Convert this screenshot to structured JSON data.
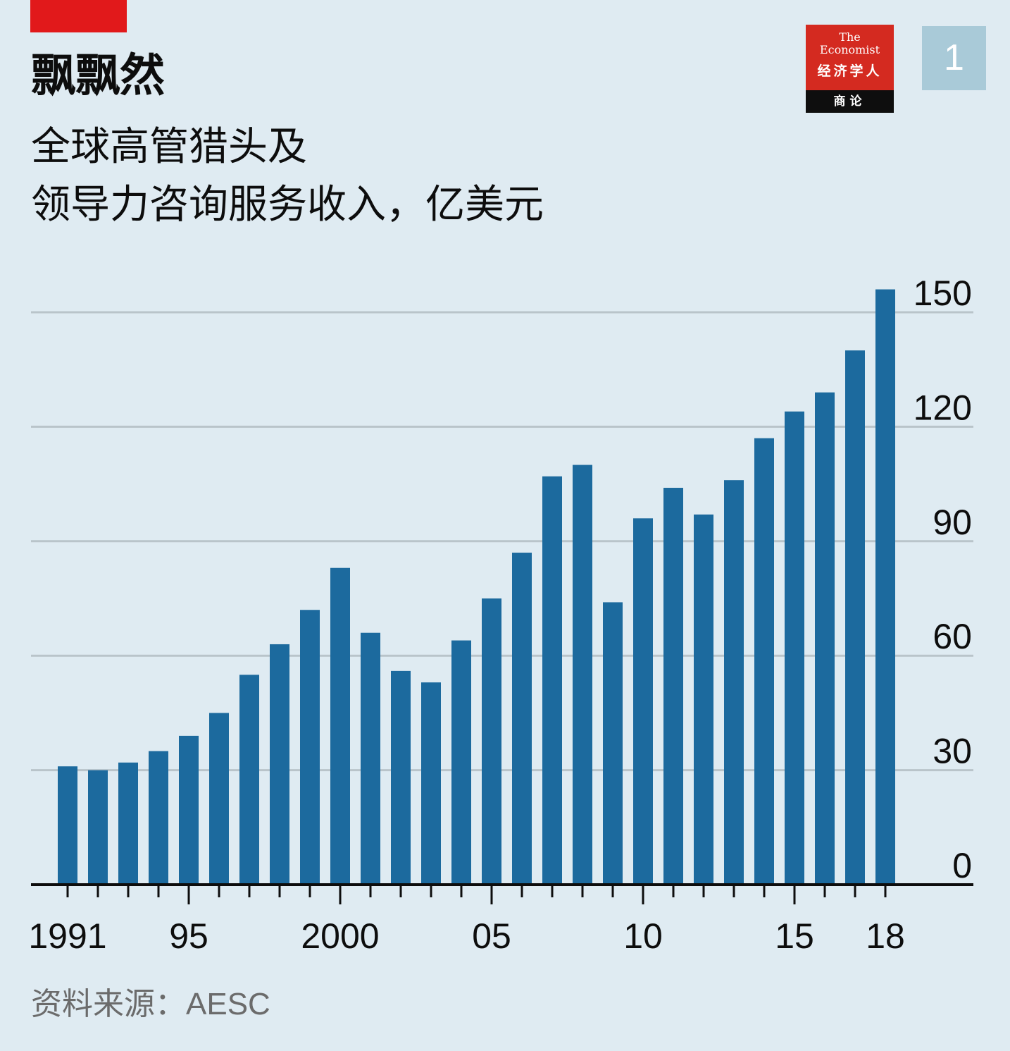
{
  "header": {
    "title": "飘飘然",
    "subtitle_lines": [
      "全球高管猎头及",
      "领导力咨询服务收入，亿美元"
    ]
  },
  "logo": {
    "line1": "The",
    "line2": "Economist",
    "line3": "经济学人",
    "line4": "商论"
  },
  "badge": {
    "number": "1"
  },
  "source": "资料来源：AESC",
  "colors": {
    "background": "#dfebf2",
    "bar": "#1c6a9e",
    "accent_red": "#e1191b",
    "gridline": "#b9c4ca",
    "axis": "#0d0d0d"
  },
  "chart_data": {
    "type": "bar",
    "title": "飘飘然",
    "subtitle": "全球高管猎头及领导力咨询服务收入，亿美元",
    "xlabel": "",
    "ylabel": "",
    "ylim": [
      0,
      150
    ],
    "y_axis_side": "right",
    "grid": true,
    "categories": [
      "1991",
      "1992",
      "1993",
      "1994",
      "1995",
      "1996",
      "1997",
      "1998",
      "1999",
      "2000",
      "2001",
      "2002",
      "2003",
      "2004",
      "2005",
      "2006",
      "2007",
      "2008",
      "2009",
      "2010",
      "2011",
      "2012",
      "2013",
      "2014",
      "2015",
      "2016",
      "2017",
      "2018"
    ],
    "values": [
      31,
      30,
      32,
      35,
      39,
      45,
      55,
      63,
      72,
      83,
      66,
      56,
      53,
      64,
      75,
      87,
      107,
      110,
      74,
      96,
      104,
      97,
      106,
      117,
      124,
      129,
      140,
      156
    ],
    "y_ticks": [
      0,
      30,
      60,
      90,
      120,
      150
    ],
    "y_tick_labels": [
      "0",
      "30",
      "60",
      "90",
      "120",
      "150"
    ],
    "x_tick_labels": [
      {
        "category": "1991",
        "label": "1991"
      },
      {
        "category": "1995",
        "label": "95"
      },
      {
        "category": "2000",
        "label": "2000"
      },
      {
        "category": "2005",
        "label": "05"
      },
      {
        "category": "2010",
        "label": "10"
      },
      {
        "category": "2015",
        "label": "15"
      },
      {
        "category": "2018",
        "label": "18"
      }
    ],
    "major_ticks": [
      "1995",
      "2000",
      "2005",
      "2010",
      "2015"
    ]
  }
}
